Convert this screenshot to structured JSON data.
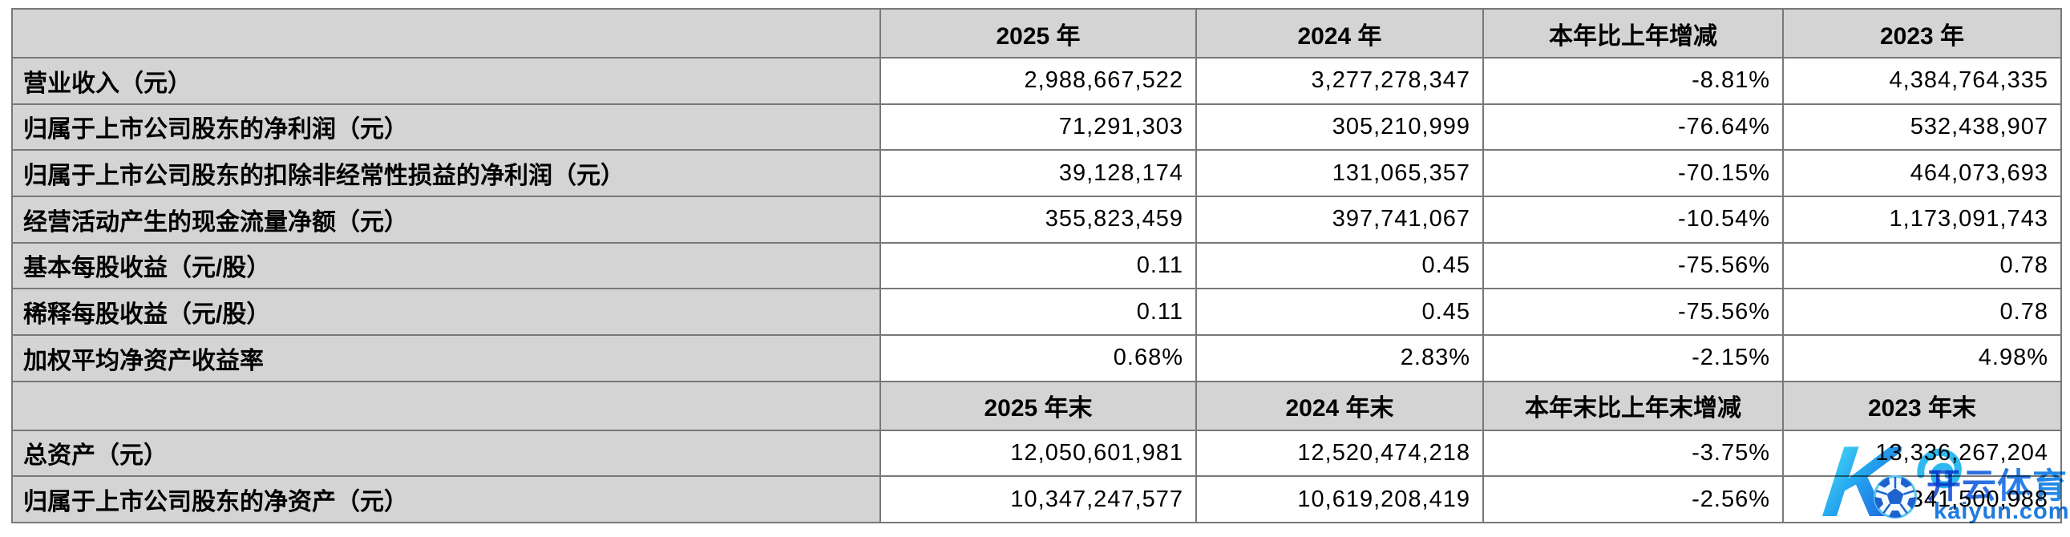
{
  "table": {
    "colors": {
      "header_fill": "#d4d4d4",
      "label_fill": "#d4d4d4",
      "border": "#787878",
      "text": "#000000"
    },
    "sections": [
      {
        "header": [
          "",
          "2025 年",
          "2024 年",
          "本年比上年增减",
          "2023 年"
        ],
        "rows": [
          [
            "营业收入（元）",
            "2,988,667,522",
            "3,277,278,347",
            "-8.81%",
            "4,384,764,335"
          ],
          [
            "归属于上市公司股东的净利润（元）",
            "71,291,303",
            "305,210,999",
            "-76.64%",
            "532,438,907"
          ],
          [
            "归属于上市公司股东的扣除非经常性损益的净利润（元）",
            "39,128,174",
            "131,065,357",
            "-70.15%",
            "464,073,693"
          ],
          [
            "经营活动产生的现金流量净额（元）",
            "355,823,459",
            "397,741,067",
            "-10.54%",
            "1,173,091,743"
          ],
          [
            "基本每股收益（元/股）",
            "0.11",
            "0.45",
            "-75.56%",
            "0.78"
          ],
          [
            "稀释每股收益（元/股）",
            "0.11",
            "0.45",
            "-75.56%",
            "0.78"
          ],
          [
            "加权平均净资产收益率",
            "0.68%",
            "2.83%",
            "-2.15%",
            "4.98%"
          ]
        ]
      },
      {
        "header": [
          "",
          "2025 年末",
          "2024 年末",
          "本年末比上年末增减",
          "2023 年末"
        ],
        "rows": [
          [
            "总资产（元）",
            "12,050,601,981",
            "12,520,474,218",
            "-3.75%",
            "13,336,267,204"
          ],
          [
            "归属于上市公司股东的净资产（元）",
            "10,347,247,577",
            "10,619,208,419",
            "-2.56%",
            "10,341,500,988"
          ]
        ]
      }
    ]
  },
  "watermark": {
    "logo_letter": "K",
    "brand_text": "开云体育",
    "domain_text": "kaiyun.com",
    "colors": {
      "gradient_start": "#47dcf7",
      "gradient_end": "#1d67de",
      "brand_blue": "#2b63dd",
      "domain_blue": "#1f7be0",
      "ball_outline": "#5ac4f0",
      "ball_pattern": "#1e62d0"
    }
  }
}
